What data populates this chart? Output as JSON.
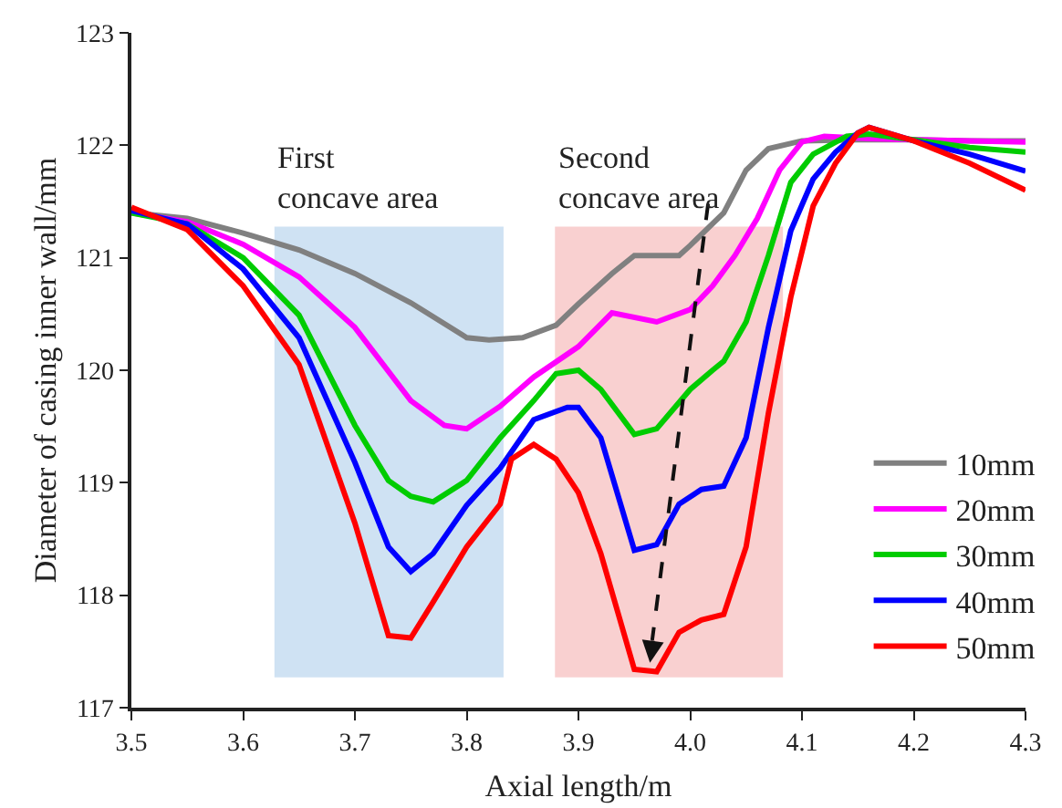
{
  "chart_data": {
    "type": "line",
    "xlabel": "Axial length/m",
    "ylabel": "Diameter of casing inner wall/mm",
    "xlim": [
      3.5,
      4.3
    ],
    "xticks": [
      3.5,
      3.6,
      3.7,
      3.8,
      3.9,
      {
        "value": 4,
        "label": "4.0"
      },
      4.1,
      4.2,
      4.3
    ],
    "ylim": [
      117,
      123
    ],
    "yticks": [
      117,
      118,
      119,
      120,
      121,
      122,
      123
    ],
    "grid": false,
    "legend": "right",
    "marker": "none",
    "line_style": "solid",
    "bands": [
      {
        "axis": "x",
        "from": 3.628,
        "to": 3.833,
        "label": "First\nconcave area",
        "color": "#cfe2f3"
      },
      {
        "axis": "x",
        "from": 3.879,
        "to": 4.083,
        "label": "Second\nconcave area",
        "color": "#f9d0d0"
      }
    ],
    "series": [
      {
        "name": "10mm",
        "color": "#808080",
        "x": [
          3.5,
          3.55,
          3.6,
          3.65,
          3.7,
          3.75,
          3.8,
          3.82,
          3.85,
          3.88,
          3.9,
          3.93,
          3.95,
          3.99,
          4.0,
          4.03,
          4.05,
          4.07,
          4.1,
          4.15,
          4.2,
          4.25,
          4.3
        ],
        "values": [
          121.4,
          121.35,
          121.22,
          121.07,
          120.86,
          120.6,
          120.29,
          120.27,
          120.29,
          120.4,
          120.59,
          120.86,
          121.02,
          121.02,
          121.11,
          121.4,
          121.78,
          121.97,
          122.04,
          122.05,
          122.05,
          122.04,
          122.04
        ]
      },
      {
        "name": "20mm",
        "color": "#ff00ff",
        "x": [
          3.5,
          3.55,
          3.6,
          3.65,
          3.7,
          3.75,
          3.78,
          3.8,
          3.83,
          3.86,
          3.9,
          3.93,
          3.97,
          4.0,
          4.02,
          4.04,
          4.06,
          4.08,
          4.1,
          4.12,
          4.16,
          4.2,
          4.25,
          4.3
        ],
        "values": [
          121.4,
          121.32,
          121.12,
          120.83,
          120.38,
          119.73,
          119.51,
          119.48,
          119.68,
          119.94,
          120.21,
          120.51,
          120.43,
          120.54,
          120.75,
          121.02,
          121.35,
          121.78,
          122.03,
          122.08,
          122.06,
          122.05,
          122.04,
          122.03
        ]
      },
      {
        "name": "30mm",
        "color": "#00cc00",
        "x": [
          3.5,
          3.55,
          3.6,
          3.65,
          3.7,
          3.73,
          3.75,
          3.77,
          3.8,
          3.83,
          3.86,
          3.88,
          3.9,
          3.92,
          3.95,
          3.97,
          4.0,
          4.02,
          4.03,
          4.05,
          4.07,
          4.09,
          4.11,
          4.14,
          4.16,
          4.2,
          4.25,
          4.3
        ],
        "values": [
          121.4,
          121.3,
          121.0,
          120.49,
          119.51,
          119.02,
          118.88,
          118.83,
          119.02,
          119.4,
          119.73,
          119.97,
          120.0,
          119.83,
          119.43,
          119.48,
          119.83,
          120.0,
          120.08,
          120.43,
          121.02,
          121.67,
          121.92,
          122.08,
          122.1,
          122.05,
          121.98,
          121.94
        ]
      },
      {
        "name": "40mm",
        "color": "#0000ff",
        "x": [
          3.5,
          3.55,
          3.6,
          3.65,
          3.7,
          3.73,
          3.75,
          3.77,
          3.8,
          3.83,
          3.86,
          3.89,
          3.9,
          3.92,
          3.95,
          3.97,
          3.99,
          4.01,
          4.03,
          4.05,
          4.07,
          4.09,
          4.11,
          4.13,
          4.15,
          4.16,
          4.2,
          4.25,
          4.3
        ],
        "values": [
          121.42,
          121.3,
          120.9,
          120.29,
          119.18,
          118.43,
          118.21,
          118.37,
          118.8,
          119.13,
          119.56,
          119.67,
          119.67,
          119.4,
          118.4,
          118.45,
          118.81,
          118.94,
          118.97,
          119.4,
          120.38,
          121.24,
          121.7,
          121.94,
          122.11,
          122.16,
          122.04,
          121.92,
          121.77
        ]
      },
      {
        "name": "50mm",
        "color": "#ff0000",
        "x": [
          3.5,
          3.55,
          3.6,
          3.65,
          3.7,
          3.73,
          3.75,
          3.77,
          3.8,
          3.83,
          3.84,
          3.86,
          3.88,
          3.9,
          3.92,
          3.95,
          3.97,
          3.99,
          4.01,
          4.03,
          4.05,
          4.07,
          4.09,
          4.11,
          4.13,
          4.15,
          4.16,
          4.2,
          4.25,
          4.3
        ],
        "values": [
          121.45,
          121.25,
          120.75,
          120.05,
          118.64,
          117.64,
          117.62,
          117.94,
          118.43,
          118.81,
          119.21,
          119.34,
          119.21,
          118.91,
          118.37,
          117.34,
          117.32,
          117.67,
          117.78,
          117.83,
          118.43,
          119.62,
          120.65,
          121.46,
          121.84,
          122.11,
          122.16,
          122.04,
          121.84,
          121.6
        ]
      }
    ]
  }
}
